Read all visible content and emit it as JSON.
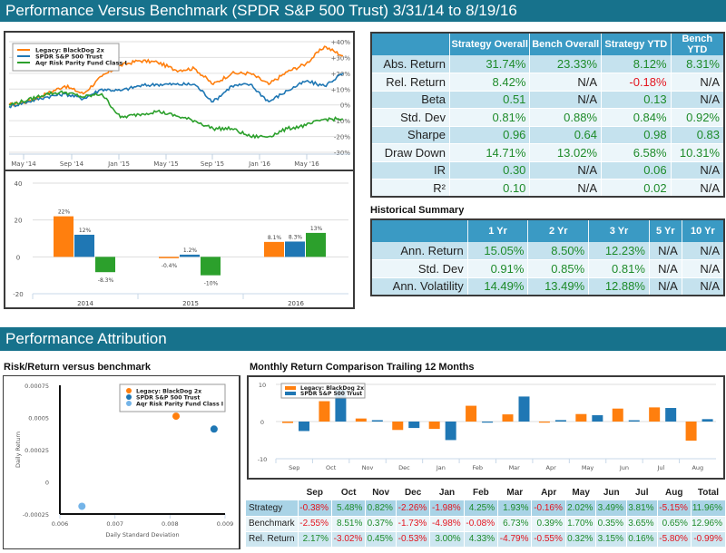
{
  "header": {
    "title": "Performance Versus Benchmark (SPDR S&P 500 Trust) 3/31/14 to 8/19/16"
  },
  "colors": {
    "strategy": "#ff7f0e",
    "benchmark": "#1f77b4",
    "aqr": "#2ca02c",
    "aqr_scatter": "#74b4e8",
    "positive": "#1e8b2a",
    "negative": "#e3141e",
    "banner": "#17728c",
    "table_header": "#3a9ac4"
  },
  "stats_table": {
    "headers": [
      "",
      "Strategy Overall",
      "Bench Overall",
      "Strategy YTD",
      "Bench YTD"
    ],
    "rows": [
      {
        "label": "Abs. Return",
        "cells": [
          {
            "v": "31.74%",
            "c": "pos"
          },
          {
            "v": "23.33%",
            "c": "pos"
          },
          {
            "v": "8.12%",
            "c": "pos"
          },
          {
            "v": "8.31%",
            "c": "pos"
          }
        ]
      },
      {
        "label": "Rel. Return",
        "cells": [
          {
            "v": "8.42%",
            "c": "pos"
          },
          {
            "v": "N/A",
            "c": "na"
          },
          {
            "v": "-0.18%",
            "c": "neg"
          },
          {
            "v": "N/A",
            "c": "na"
          }
        ]
      },
      {
        "label": "Beta",
        "cells": [
          {
            "v": "0.51",
            "c": "pos"
          },
          {
            "v": "N/A",
            "c": "na"
          },
          {
            "v": "0.13",
            "c": "pos"
          },
          {
            "v": "N/A",
            "c": "na"
          }
        ]
      },
      {
        "label": "Std. Dev",
        "cells": [
          {
            "v": "0.81%",
            "c": "pos"
          },
          {
            "v": "0.88%",
            "c": "pos"
          },
          {
            "v": "0.84%",
            "c": "pos"
          },
          {
            "v": "0.92%",
            "c": "pos"
          }
        ]
      },
      {
        "label": "Sharpe",
        "cells": [
          {
            "v": "0.96",
            "c": "pos"
          },
          {
            "v": "0.64",
            "c": "pos"
          },
          {
            "v": "0.98",
            "c": "pos"
          },
          {
            "v": "0.83",
            "c": "pos"
          }
        ]
      },
      {
        "label": "Draw Down",
        "cells": [
          {
            "v": "14.71%",
            "c": "pos"
          },
          {
            "v": "13.02%",
            "c": "pos"
          },
          {
            "v": "6.58%",
            "c": "pos"
          },
          {
            "v": "10.31%",
            "c": "pos"
          }
        ]
      },
      {
        "label": "IR",
        "cells": [
          {
            "v": "0.30",
            "c": "pos"
          },
          {
            "v": "N/A",
            "c": "na"
          },
          {
            "v": "0.06",
            "c": "pos"
          },
          {
            "v": "N/A",
            "c": "na"
          }
        ]
      },
      {
        "label": "R²",
        "cells": [
          {
            "v": "0.10",
            "c": "pos"
          },
          {
            "v": "N/A",
            "c": "na"
          },
          {
            "v": "0.02",
            "c": "pos"
          },
          {
            "v": "N/A",
            "c": "na"
          }
        ]
      }
    ]
  },
  "historical": {
    "title": "Historical Summary",
    "headers": [
      "",
      "1 Yr",
      "2 Yr",
      "3 Yr",
      "5 Yr",
      "10 Yr"
    ],
    "rows": [
      {
        "label": "Ann. Return",
        "cells": [
          {
            "v": "15.05%",
            "c": "pos"
          },
          {
            "v": "8.50%",
            "c": "pos"
          },
          {
            "v": "12.23%",
            "c": "pos"
          },
          {
            "v": "N/A",
            "c": "na"
          },
          {
            "v": "N/A",
            "c": "na"
          }
        ]
      },
      {
        "label": "Std. Dev",
        "cells": [
          {
            "v": "0.91%",
            "c": "pos"
          },
          {
            "v": "0.85%",
            "c": "pos"
          },
          {
            "v": "0.81%",
            "c": "pos"
          },
          {
            "v": "N/A",
            "c": "na"
          },
          {
            "v": "N/A",
            "c": "na"
          }
        ]
      },
      {
        "label": "Ann. Volatility",
        "cells": [
          {
            "v": "14.49%",
            "c": "pos"
          },
          {
            "v": "13.49%",
            "c": "pos"
          },
          {
            "v": "12.88%",
            "c": "pos"
          },
          {
            "v": "N/A",
            "c": "na"
          },
          {
            "v": "N/A",
            "c": "na"
          }
        ]
      }
    ]
  },
  "attribution": {
    "title": "Performance Attribution",
    "risk_title": "Risk/Return versus benchmark",
    "monthly_title": "Monthly Return Comparison Trailing 12 Months"
  },
  "monthly_table": {
    "headers": [
      "",
      "Sep",
      "Oct",
      "Nov",
      "Dec",
      "Jan",
      "Feb",
      "Mar",
      "Apr",
      "May",
      "Jun",
      "Jul",
      "Aug",
      "Total"
    ],
    "rows": [
      {
        "label": "Strategy",
        "cls": "odd",
        "cells": [
          {
            "v": "-0.38%",
            "c": "neg"
          },
          {
            "v": "5.48%",
            "c": "pos"
          },
          {
            "v": "0.82%",
            "c": "pos"
          },
          {
            "v": "-2.26%",
            "c": "neg"
          },
          {
            "v": "-1.98%",
            "c": "neg"
          },
          {
            "v": "4.25%",
            "c": "pos"
          },
          {
            "v": "1.93%",
            "c": "pos"
          },
          {
            "v": "-0.16%",
            "c": "neg"
          },
          {
            "v": "2.02%",
            "c": "pos"
          },
          {
            "v": "3.49%",
            "c": "pos"
          },
          {
            "v": "3.81%",
            "c": "pos"
          },
          {
            "v": "-5.15%",
            "c": "neg"
          },
          {
            "v": "11.96%",
            "c": "pos"
          }
        ]
      },
      {
        "label": "Benchmark",
        "cls": "even",
        "cells": [
          {
            "v": "-2.55%",
            "c": "neg"
          },
          {
            "v": "8.51%",
            "c": "pos"
          },
          {
            "v": "0.37%",
            "c": "pos"
          },
          {
            "v": "-1.73%",
            "c": "neg"
          },
          {
            "v": "-4.98%",
            "c": "neg"
          },
          {
            "v": "-0.08%",
            "c": "neg"
          },
          {
            "v": "6.73%",
            "c": "pos"
          },
          {
            "v": "0.39%",
            "c": "pos"
          },
          {
            "v": "1.70%",
            "c": "pos"
          },
          {
            "v": "0.35%",
            "c": "pos"
          },
          {
            "v": "3.65%",
            "c": "pos"
          },
          {
            "v": "0.65%",
            "c": "pos"
          },
          {
            "v": "12.96%",
            "c": "pos"
          }
        ]
      },
      {
        "label": "Rel. Return",
        "cls": "rel",
        "cells": [
          {
            "v": "2.17%",
            "c": "pos"
          },
          {
            "v": "-3.02%",
            "c": "neg"
          },
          {
            "v": "0.45%",
            "c": "pos"
          },
          {
            "v": "-0.53%",
            "c": "neg"
          },
          {
            "v": "3.00%",
            "c": "pos"
          },
          {
            "v": "4.33%",
            "c": "pos"
          },
          {
            "v": "-4.79%",
            "c": "neg"
          },
          {
            "v": "-0.55%",
            "c": "neg"
          },
          {
            "v": "0.32%",
            "c": "pos"
          },
          {
            "v": "3.15%",
            "c": "pos"
          },
          {
            "v": "0.16%",
            "c": "pos"
          },
          {
            "v": "-5.80%",
            "c": "neg"
          },
          {
            "v": "-0.99%",
            "c": "neg"
          }
        ]
      }
    ]
  },
  "chart_data": [
    {
      "type": "line",
      "title": "",
      "legend": [
        "Legacy: BlackDog 2x",
        "SPDR S&P 500 Trust",
        "Aqr Risk Parity Fund Class I"
      ],
      "legend_position": "top-left",
      "x_ticks": [
        "May '14",
        "Sep '14",
        "Jan '15",
        "May '15",
        "Sep '15",
        "Jan '16",
        "May '16"
      ],
      "y_ticks": [
        "+40%",
        "+30%",
        "+20%",
        "+10%",
        "0%",
        "-10%",
        "-20%",
        "-30%"
      ],
      "ylim": [
        -30,
        40
      ],
      "x": [
        "Mar '14",
        "May '14",
        "Jul '14",
        "Sep '14",
        "Oct '14",
        "Dec '14",
        "Jan '15",
        "Mar '15",
        "May '15",
        "Jul '15",
        "Aug '15",
        "Sep '15",
        "Nov '15",
        "Jan '16",
        "Feb '16",
        "Apr '16",
        "Jun '16",
        "Jul '16",
        "Aug '16"
      ],
      "series": [
        {
          "name": "Legacy: BlackDog 2x",
          "values": [
            0,
            2,
            7,
            12,
            7,
            18,
            25,
            28,
            27,
            22,
            23,
            13,
            20,
            20,
            13,
            21,
            26,
            37,
            31
          ]
        },
        {
          "name": "SPDR S&P 500 Trust",
          "values": [
            -1,
            2,
            5,
            7,
            4,
            10,
            9,
            12,
            13,
            13,
            13,
            2,
            12,
            13,
            2,
            9,
            15,
            12,
            20
          ]
        },
        {
          "name": "Aqr Risk Parity Fund Class I",
          "values": [
            0,
            3,
            7,
            8,
            5,
            7,
            -8,
            -6,
            -4,
            -7,
            -10,
            -15,
            -15,
            -20,
            -20,
            -15,
            -13,
            -9,
            -9
          ]
        }
      ]
    },
    {
      "type": "bar",
      "categories": [
        "2014",
        "2015",
        "2016"
      ],
      "series": [
        {
          "name": "Legacy: BlackDog 2x",
          "values": [
            22,
            -0.4,
            8.1
          ],
          "labels": [
            "22%",
            "-0.4%",
            "8.1%"
          ]
        },
        {
          "name": "SPDR S&P 500 Trust",
          "values": [
            12,
            1.2,
            8.3
          ],
          "labels": [
            "12%",
            "1.2%",
            "8.3%"
          ]
        },
        {
          "name": "Aqr Risk Parity Fund Class I",
          "values": [
            -8.3,
            -10,
            13
          ],
          "labels": [
            "-8.3%",
            "-10%",
            "13%"
          ]
        }
      ],
      "y_ticks": [
        "40",
        "20",
        "0",
        "-20"
      ],
      "ylim": [
        -20,
        40
      ]
    },
    {
      "type": "scatter",
      "xlabel": "Daily Standard Deviation",
      "ylabel": "Daily Return",
      "x_ticks": [
        "0.006",
        "0.007",
        "0.008",
        "0.009"
      ],
      "y_ticks": [
        "0.00075",
        "0.0005",
        "0.00025",
        "0",
        "-0.00025"
      ],
      "xlim": [
        0.006,
        0.009
      ],
      "ylim": [
        -0.00025,
        0.00075
      ],
      "legend_position": "top-right",
      "points": [
        {
          "name": "Legacy: BlackDog 2x",
          "x": 0.00811,
          "y": 0.00051
        },
        {
          "name": "SPDR S&P 500 Trust",
          "x": 0.0088,
          "y": 0.00041
        },
        {
          "name": "Aqr Risk Parity Fund Class I",
          "x": 0.0064,
          "y": -0.00019
        }
      ]
    },
    {
      "type": "bar",
      "categories": [
        "Sep",
        "Oct",
        "Nov",
        "Dec",
        "Jan",
        "Feb",
        "Mar",
        "Apr",
        "May",
        "Jun",
        "Jul",
        "Aug"
      ],
      "series": [
        {
          "name": "Legacy: BlackDog 2x",
          "values": [
            -0.38,
            5.48,
            0.82,
            -2.26,
            -1.98,
            4.25,
            1.93,
            -0.16,
            2.02,
            3.49,
            3.81,
            -5.15
          ]
        },
        {
          "name": "SPDR S&P 500 Trust",
          "values": [
            -2.55,
            8.51,
            0.37,
            -1.73,
            -4.98,
            -0.08,
            6.73,
            0.39,
            1.7,
            0.35,
            3.65,
            0.65
          ]
        }
      ],
      "y_ticks": [
        "10",
        "0",
        "-10"
      ],
      "ylim": [
        -10,
        10
      ],
      "legend_position": "top-left"
    }
  ]
}
